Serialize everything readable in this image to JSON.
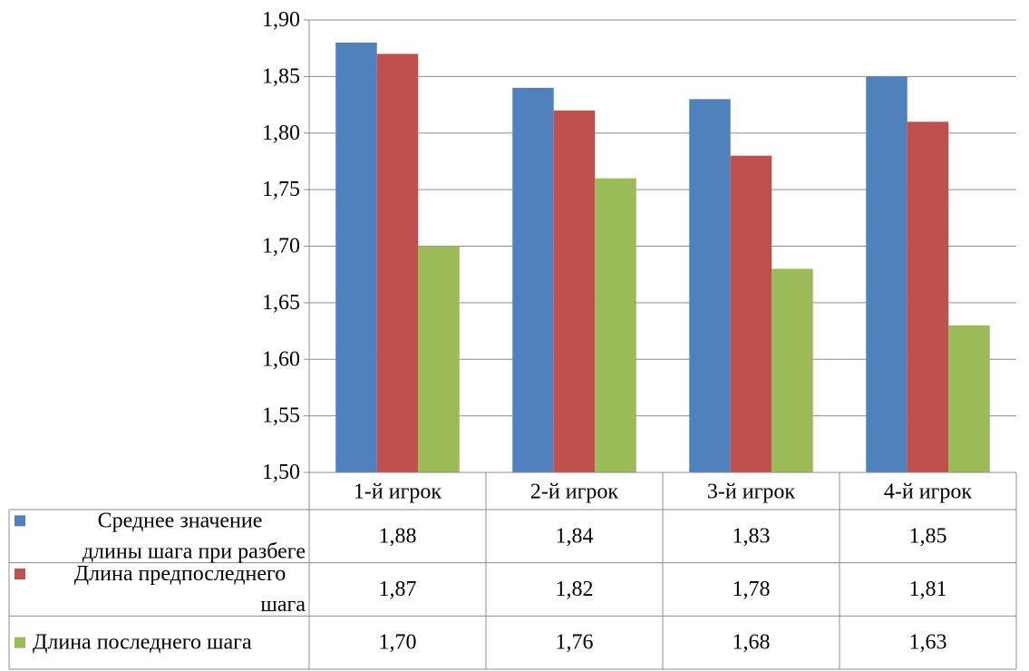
{
  "chart_data": {
    "type": "bar",
    "title": "",
    "xlabel": "",
    "ylabel": "",
    "ylim": [
      1.5,
      1.9
    ],
    "y_ticks": [
      "1,50",
      "1,55",
      "1,60",
      "1,65",
      "1,70",
      "1,75",
      "1,80",
      "1,85",
      "1,90"
    ],
    "grid": true,
    "legend": "data-table-left",
    "categories": [
      "1-й игрок",
      "2-й игрок",
      "3-й игрок",
      "4-й игрок"
    ],
    "series": [
      {
        "name": "Среднее значение длины шага при разбеге",
        "name_lines": [
          "Среднее значение",
          "длины шага при разбеге"
        ],
        "color": "#4f81bd",
        "values": [
          1.88,
          1.84,
          1.83,
          1.85
        ],
        "labels": [
          "1,88",
          "1,84",
          "1,83",
          "1,85"
        ]
      },
      {
        "name": "Длина предпоследнего шага",
        "name_lines": [
          "Длина предпоследнего",
          "шага"
        ],
        "color": "#c0504d",
        "values": [
          1.87,
          1.82,
          1.78,
          1.81
        ],
        "labels": [
          "1,87",
          "1,82",
          "1,78",
          "1,81"
        ]
      },
      {
        "name": "Длина последнего шага",
        "name_lines": [
          "Длина последнего шага"
        ],
        "color": "#9bbb59",
        "values": [
          1.7,
          1.76,
          1.68,
          1.63
        ],
        "labels": [
          "1,70",
          "1,76",
          "1,68",
          "1,63"
        ]
      }
    ]
  }
}
